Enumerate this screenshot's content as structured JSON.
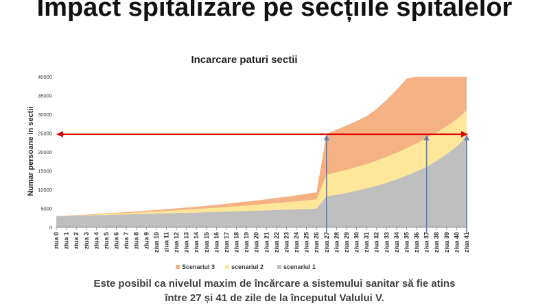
{
  "slide": {
    "title": "Impact spitalizare pe secțiile spitalelor",
    "caption_line1": "Este posibil ca nivelul maxim de încărcare a sistemului sanitar să fie atins",
    "caption_line2": "între 27 și 41 de zile de la începutul Valului V."
  },
  "colors": {
    "scenariul_3": "#F4B183",
    "scenariul_2": "#FFE699",
    "scenariul_1": "#BFBFBF",
    "threshold_line": "#E00000",
    "markers": "#5B7DB8"
  },
  "chart_data": {
    "type": "area",
    "title": "Incarcare paturi sectii",
    "xlabel": "",
    "ylabel": "Numar persoane in sectii",
    "x": [
      "ziua 0",
      "ziua 1",
      "ziua 2",
      "ziua 3",
      "ziua 4",
      "ziua 5",
      "ziua 6",
      "ziua 7",
      "ziua 8",
      "ziua 9",
      "ziua 10",
      "ziua 11",
      "ziua 12",
      "ziua 13",
      "ziua 14",
      "ziua 15",
      "ziua 16",
      "ziua 17",
      "ziua 18",
      "ziua 19",
      "ziua 20",
      "ziua 21",
      "ziua 22",
      "ziua 23",
      "ziua 24",
      "ziua 25",
      "ziua 26",
      "ziua 27",
      "ziua 28",
      "ziua 29",
      "ziua 30",
      "ziua 31",
      "ziua 32",
      "ziua 33",
      "ziua 34",
      "ziua 35",
      "ziua 36",
      "ziua 37",
      "ziua 38",
      "ziua 39",
      "ziua 40",
      "ziua 41"
    ],
    "ylim": [
      0,
      40000
    ],
    "yticks": [
      0,
      5000,
      10000,
      15000,
      20000,
      25000,
      30000,
      35000,
      40000
    ],
    "stacked": false,
    "grid": false,
    "legend_position": "bottom",
    "series": [
      {
        "name": "Scenariul 3",
        "values": [
          2950,
          3083,
          3222,
          3366,
          3518,
          3676,
          3842,
          4014,
          4195,
          4384,
          4581,
          4787,
          5003,
          5228,
          5463,
          5709,
          5966,
          6235,
          6515,
          6808,
          7115,
          7435,
          7770,
          8119,
          8485,
          8866,
          9266,
          24800,
          25900,
          27000,
          28200,
          29500,
          31400,
          33800,
          36500,
          39500,
          40000,
          40000,
          40000,
          40000,
          40000,
          40000
        ]
      },
      {
        "name": "scenariul 2",
        "values": [
          2950,
          3055,
          3165,
          3279,
          3397,
          3519,
          3646,
          3777,
          3913,
          4054,
          4200,
          4351,
          4508,
          4670,
          4838,
          5012,
          5192,
          5379,
          5573,
          5774,
          5981,
          6197,
          6420,
          6651,
          6890,
          7138,
          7395,
          14000,
          14600,
          15300,
          16000,
          16800,
          17700,
          18700,
          19800,
          21000,
          22300,
          23700,
          25200,
          26800,
          28700,
          31000
        ]
      },
      {
        "name": "scenariul 1",
        "values": [
          2950,
          3010,
          3070,
          3132,
          3195,
          3259,
          3324,
          3391,
          3459,
          3528,
          3599,
          3671,
          3744,
          3819,
          3896,
          3974,
          4054,
          4135,
          4218,
          4302,
          4388,
          4476,
          4566,
          4657,
          4750,
          4845,
          4942,
          8200,
          8600,
          9100,
          9700,
          10300,
          11000,
          11800,
          12700,
          13700,
          14800,
          16000,
          17600,
          19400,
          21400,
          24000
        ]
      }
    ],
    "threshold": 24700
  }
}
